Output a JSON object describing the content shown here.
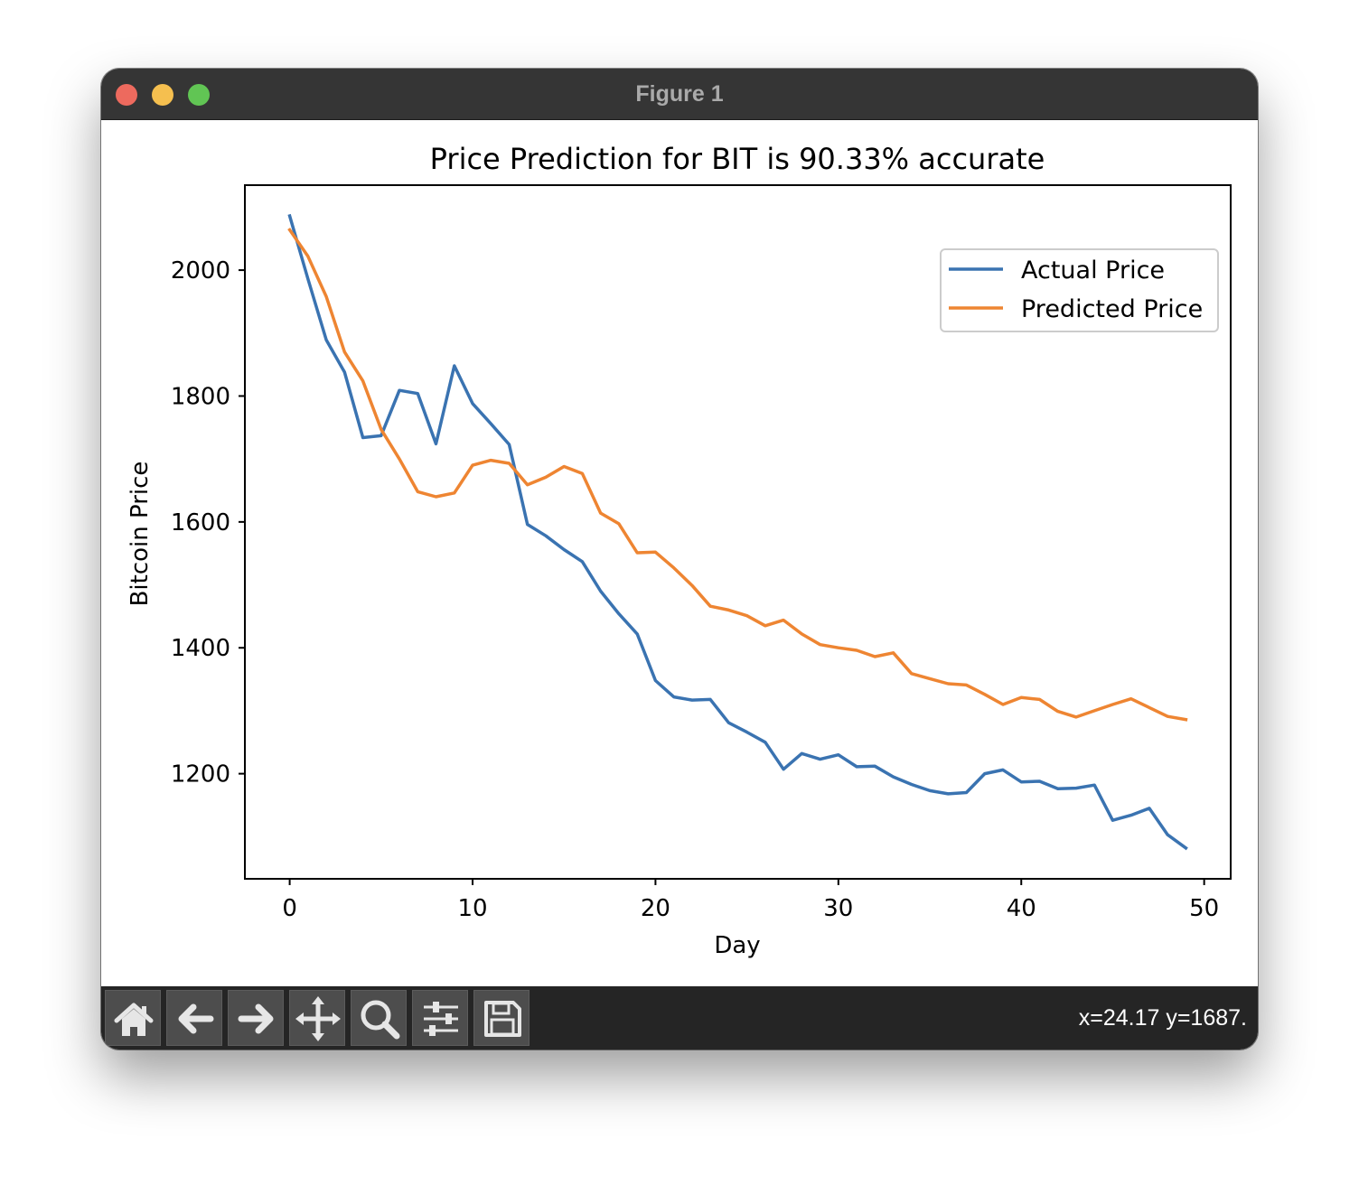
{
  "window": {
    "title": "Figure 1"
  },
  "toolbar": {
    "buttons": [
      {
        "name": "home-icon",
        "tooltip": "Reset original view"
      },
      {
        "name": "back-arrow-icon",
        "tooltip": "Back to previous view"
      },
      {
        "name": "forward-arrow-icon",
        "tooltip": "Forward to next view"
      },
      {
        "name": "pan-icon",
        "tooltip": "Pan axes"
      },
      {
        "name": "zoom-icon",
        "tooltip": "Zoom to rectangle"
      },
      {
        "name": "configure-subplots-icon",
        "tooltip": "Configure subplots"
      },
      {
        "name": "save-icon",
        "tooltip": "Save the figure"
      }
    ],
    "coordinates": "x=24.17 y=1687."
  },
  "colors": {
    "actual": "#3a73b1",
    "predicted": "#ee8532",
    "titlebar": "#353535",
    "toolbar": "#252525"
  },
  "chart_data": {
    "type": "line",
    "title": "Price Prediction for BIT is 90.33% accurate",
    "xlabel": "Day",
    "ylabel": "Bitcoin Price",
    "xlim": [
      -2.45,
      51.45
    ],
    "ylim": [
      1033,
      2135
    ],
    "xticks": [
      0,
      10,
      20,
      30,
      40,
      50
    ],
    "yticks": [
      1200,
      1400,
      1600,
      1800,
      2000
    ],
    "grid": false,
    "legend": "top-right",
    "x": [
      0,
      1,
      2,
      3,
      4,
      5,
      6,
      7,
      8,
      9,
      10,
      11,
      12,
      13,
      14,
      15,
      16,
      17,
      18,
      19,
      20,
      21,
      22,
      23,
      24,
      25,
      26,
      27,
      28,
      29,
      30,
      31,
      32,
      33,
      34,
      35,
      36,
      37,
      38,
      39,
      40,
      41,
      42,
      43,
      44,
      45,
      46,
      47,
      48,
      49
    ],
    "series": [
      {
        "name": "Actual Price",
        "values": [
          2086,
          1986,
          1889,
          1838,
          1734,
          1737,
          1809,
          1804,
          1724,
          1848,
          1788,
          1756,
          1723,
          1596,
          1578,
          1556,
          1537,
          1490,
          1454,
          1422,
          1348,
          1322,
          1317,
          1318,
          1281,
          1266,
          1250,
          1207,
          1232,
          1223,
          1230,
          1211,
          1212,
          1195,
          1183,
          1173,
          1168,
          1170,
          1200,
          1206,
          1187,
          1188,
          1176,
          1177,
          1182,
          1126,
          1134,
          1145,
          1103,
          1082
        ]
      },
      {
        "name": "Predicted Price",
        "values": [
          2064,
          2022,
          1958,
          1870,
          1824,
          1747,
          1700,
          1648,
          1640,
          1646,
          1690,
          1698,
          1693,
          1659,
          1671,
          1688,
          1677,
          1614,
          1597,
          1551,
          1552,
          1527,
          1499,
          1466,
          1460,
          1451,
          1435,
          1444,
          1422,
          1405,
          1400,
          1396,
          1386,
          1392,
          1359,
          1351,
          1343,
          1341,
          1326,
          1310,
          1321,
          1318,
          1299,
          1290,
          1300,
          1310,
          1319,
          1305,
          1291,
          1286
        ]
      }
    ]
  }
}
